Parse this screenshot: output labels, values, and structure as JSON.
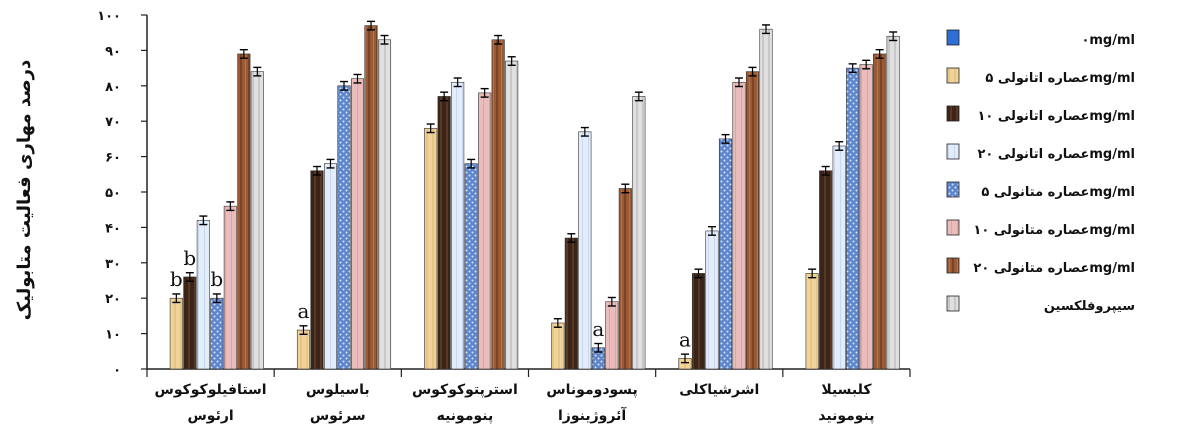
{
  "chart_data": {
    "type": "bar",
    "title": "",
    "xlabel": "",
    "ylabel": "درصد مهاری فعالیت متابولیک",
    "ylim": [
      0,
      100
    ],
    "yticks": [
      "۰",
      "۱۰",
      "۲۰",
      "۳۰",
      "۴۰",
      "۵۰",
      "۶۰",
      "۷۰",
      "۸۰",
      "۹۰",
      "۱۰۰"
    ],
    "categories": [
      [
        "استافیلوکوکوس",
        "ارئوس"
      ],
      [
        "باسیلوس",
        "سرئوس"
      ],
      [
        "استرپتوکوکوس",
        "پنومونیه"
      ],
      [
        "پسودوموناس",
        "آئروژینوزا"
      ],
      [
        "اشرشیاکلی"
      ],
      [
        "کلبسیلا",
        "پنومونید"
      ]
    ],
    "series": [
      {
        "name": "۰mg/ml",
        "color": "#2e6fd6",
        "pattern": "solid-blue",
        "values": [
          0,
          0,
          0,
          0,
          0,
          0
        ]
      },
      {
        "name": "عصاره اتانولی  ۵mg/ml",
        "color": "#efd39b",
        "pattern": "tan",
        "values": [
          20,
          11,
          68,
          13,
          3,
          27
        ]
      },
      {
        "name": "عصاره اتانولی  ۱۰mg/ml",
        "color": "#4a2c1c",
        "pattern": "dark-brown",
        "values": [
          26,
          56,
          77,
          37,
          27,
          56
        ]
      },
      {
        "name": "عصاره اتانولی  ۲۰mg/ml",
        "color": "#dbe6f7",
        "pattern": "light-blue",
        "values": [
          42,
          58,
          81,
          67,
          39,
          63
        ]
      },
      {
        "name": "عصاره متانولی ۵mg/ml",
        "color": "#6a8fcf",
        "pattern": "dotted-blue",
        "values": [
          20,
          80,
          58,
          6,
          65,
          85
        ]
      },
      {
        "name": "عصاره متانولی ۱۰mg/ml",
        "color": "#e7b7b6",
        "pattern": "pink",
        "values": [
          46,
          82,
          78,
          19,
          81,
          86
        ]
      },
      {
        "name": "عصاره متانولی ۲۰mg/ml",
        "color": "#9a5a34",
        "pattern": "wood",
        "values": [
          89,
          97,
          93,
          51,
          84,
          89
        ]
      },
      {
        "name": "سیپروفلکسین",
        "color": "#d6d6d6",
        "pattern": "gray",
        "values": [
          84,
          93,
          87,
          77,
          96,
          94
        ]
      }
    ],
    "error_bar": 1.2,
    "annotations": [
      {
        "text": "b",
        "category": 0,
        "series": 1
      },
      {
        "text": "b",
        "category": 0,
        "series": 2
      },
      {
        "text": "b",
        "category": 0,
        "series": 4
      },
      {
        "text": "a",
        "category": 1,
        "series": 1
      },
      {
        "text": "a",
        "category": 3,
        "series": 4
      },
      {
        "text": "a",
        "category": 4,
        "series": 1
      }
    ],
    "legend_position": "right",
    "grid": false
  }
}
